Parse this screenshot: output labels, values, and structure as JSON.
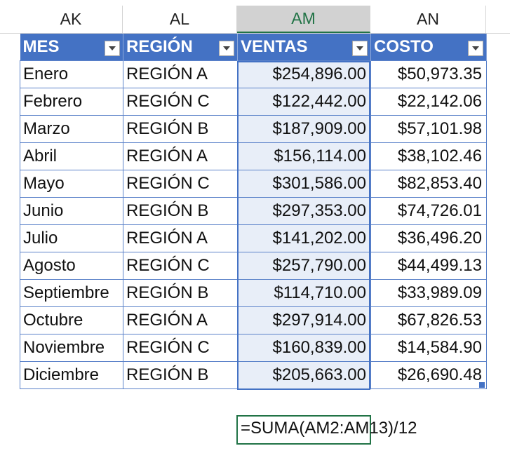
{
  "column_headers": [
    {
      "label": "AK",
      "active": false
    },
    {
      "label": "AL",
      "active": false
    },
    {
      "label": "AM",
      "active": true
    },
    {
      "label": "AN",
      "active": false
    }
  ],
  "table": {
    "headers": [
      "MES",
      "REGIÓN",
      "VENTAS",
      "COSTO"
    ],
    "rows": [
      [
        "Enero",
        "REGIÓN A",
        "$254,896.00",
        "$50,973.35"
      ],
      [
        "Febrero",
        "REGIÓN C",
        "$122,442.00",
        "$22,142.06"
      ],
      [
        "Marzo",
        "REGIÓN B",
        "$187,909.00",
        "$57,101.98"
      ],
      [
        "Abril",
        "REGIÓN A",
        "$156,114.00",
        "$38,102.46"
      ],
      [
        "Mayo",
        "REGIÓN C",
        "$301,586.00",
        "$82,853.40"
      ],
      [
        "Junio",
        "REGIÓN B",
        "$297,353.00",
        "$74,726.01"
      ],
      [
        "Julio",
        "REGIÓN A",
        "$141,202.00",
        "$36,496.20"
      ],
      [
        "Agosto",
        "REGIÓN C",
        "$257,790.00",
        "$44,499.13"
      ],
      [
        "Septiembre",
        "REGIÓN B",
        "$114,710.00",
        "$33,989.09"
      ],
      [
        "Octubre",
        "REGIÓN A",
        "$297,914.00",
        "$67,826.53"
      ],
      [
        "Noviembre",
        "REGIÓN C",
        "$160,839.00",
        "$14,584.90"
      ],
      [
        "Diciembre",
        "REGIÓN B",
        "$205,663.00",
        "$26,690.48"
      ]
    ]
  },
  "formula_cell": {
    "text": "=SUMA(AM2:AM13)/12"
  },
  "colors": {
    "table_header_bg": "#4472c4",
    "selection_fill": "#e8eef8",
    "active_accent": "#217346"
  }
}
